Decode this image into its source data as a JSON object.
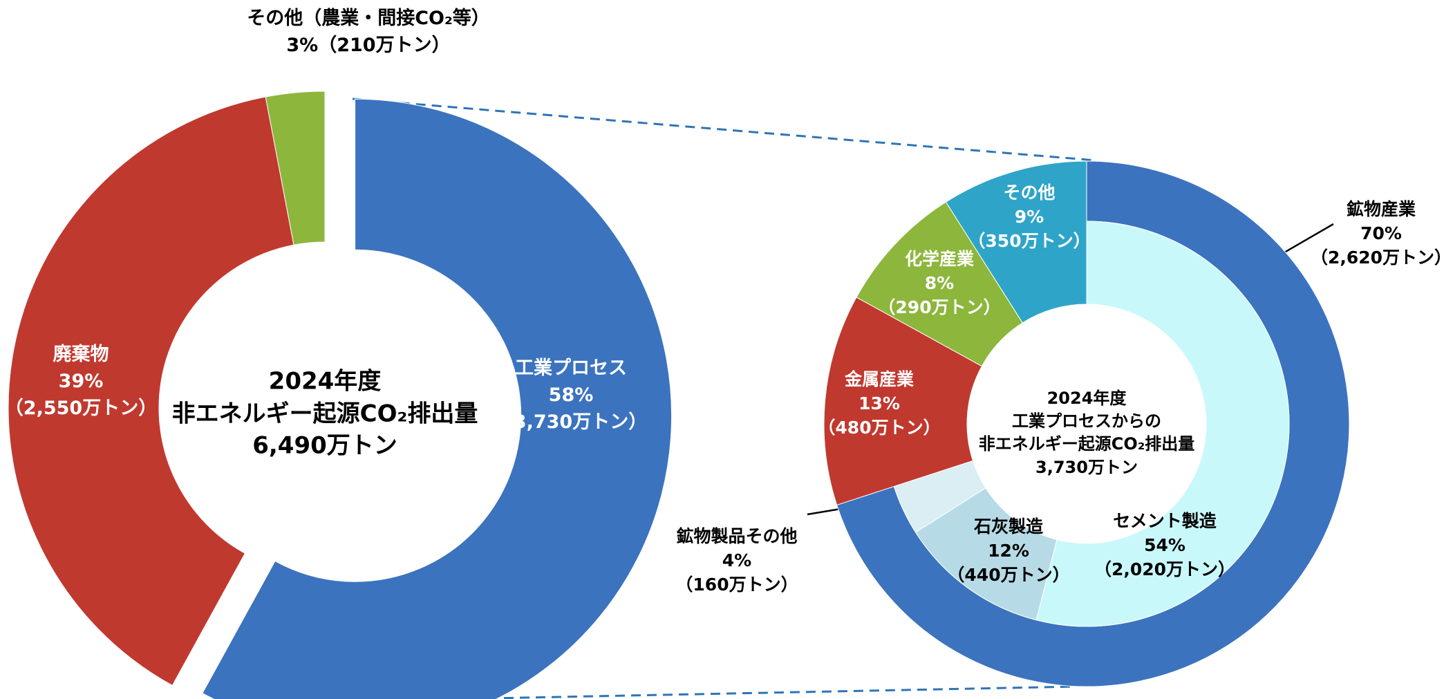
{
  "chart_data": [
    {
      "type": "donut",
      "center_text": [
        "2024年度",
        "非エネルギー起源CO₂排出量",
        "6,490万トン"
      ],
      "categories": [
        "工業プロセス",
        "廃棄物",
        "その他（農業・間接CO₂等）"
      ],
      "values": [
        58,
        39,
        3
      ],
      "value_labels": [
        "58%",
        "39%",
        "3%"
      ],
      "amount_labels": [
        "（3,730万トン）",
        "（2,550万トン）",
        "（210万トン）"
      ],
      "colors": [
        "#3b73be",
        "#c0392f",
        "#8db63c"
      ]
    },
    {
      "type": "donut",
      "center_text": [
        "2024年度",
        "工業プロセスからの",
        "非エネルギー起源CO₂排出量",
        "3,730万トン"
      ],
      "categories": [
        "鉱物産業",
        "金属産業",
        "化学産業",
        "その他"
      ],
      "values": [
        70,
        13,
        8,
        9
      ],
      "value_labels": [
        "70%",
        "13%",
        "8%",
        "9%"
      ],
      "amount_labels": [
        "（2,620万トン）",
        "（480万トン）",
        "（290万トン）",
        "（350万トン）"
      ],
      "colors": [
        "#3b73be",
        "#c0392f",
        "#8db63c",
        "#2ea5c8"
      ],
      "sub_categories": [
        "セメント製造",
        "石灰製造",
        "鉱物製品その他"
      ],
      "sub_values": [
        54,
        12,
        4
      ],
      "sub_value_labels": [
        "54%",
        "12%",
        "4%"
      ],
      "sub_amount_labels": [
        "（2,020万トン）",
        "（440万トン）",
        "（160万トン）"
      ],
      "sub_colors": [
        "#c9f8fa",
        "#b7dbe6",
        "#daeef4"
      ]
    }
  ]
}
